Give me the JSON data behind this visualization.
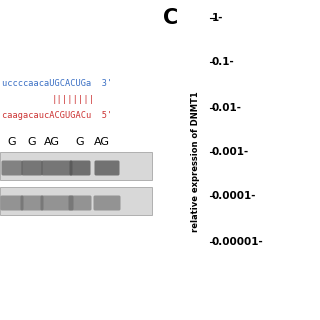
{
  "panel_c_label": "C",
  "ylabel": "relative expression of DNMT1",
  "ytick_labels": [
    "1-",
    "0.1-",
    "0.01-",
    "0.001-",
    "0.0001-",
    "0.00001-"
  ],
  "seq1": "uccccaacaUGCACUGa",
  "seq2": "caagacaucACGUGACu",
  "bars": "||||||||",
  "end3": "3'",
  "end5": "5'",
  "lane_labels": [
    "G",
    "G",
    "AG",
    "G",
    "AG"
  ],
  "bg_color": "#ffffff",
  "blue_color": "#3a6fc4",
  "red_color": "#cc3333",
  "black_color": "#000000",
  "gel_bg": "#d8d8d8",
  "band_color": "#555555",
  "band2_color": "#666666"
}
